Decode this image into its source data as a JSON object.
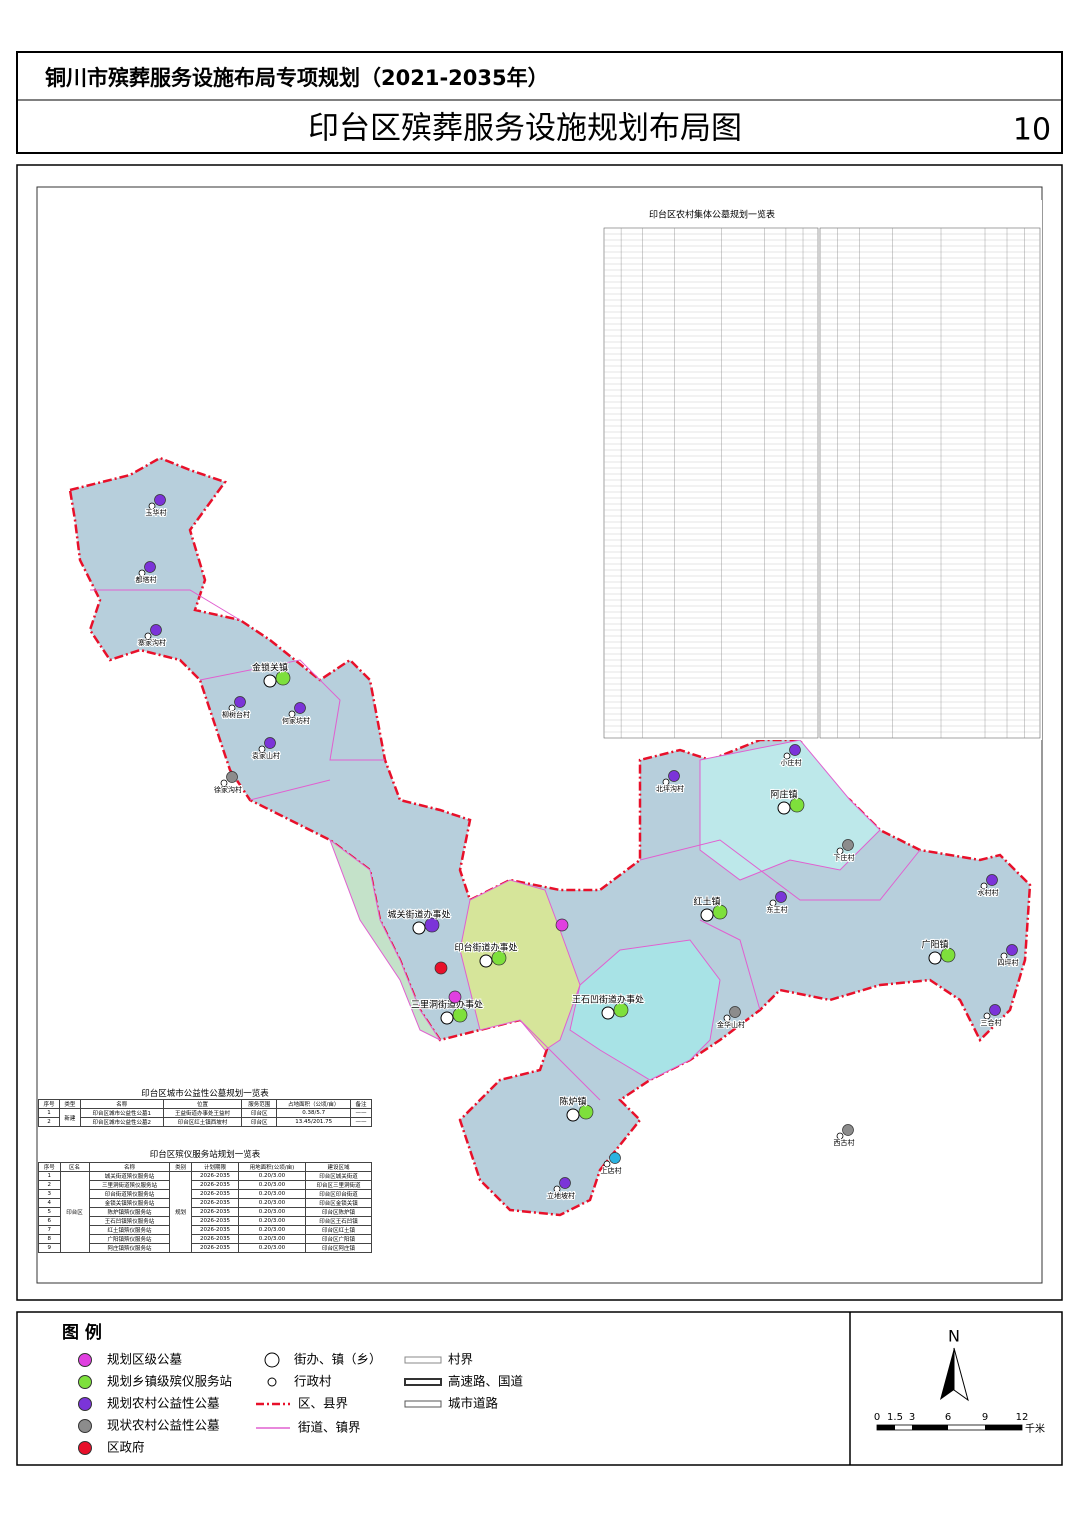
{
  "header": {
    "series_title": "铜川市殡葬服务设施布局专项规划（2021-2035年）",
    "title": "印台区殡葬服务设施规划布局图",
    "page": "10"
  },
  "rural_table": {
    "title": "印台区农村集体公墓规划一览表"
  },
  "places": [
    {
      "name": "玉华村",
      "color": "#7b34d8"
    },
    {
      "name": "都塔村",
      "color": "#7b34d8"
    },
    {
      "name": "寨家沟村",
      "color": "#7b34d8"
    },
    {
      "name": "金锁关镇",
      "color": "#7ee03c",
      "town": true
    },
    {
      "name": "柳树台村",
      "color": "#7b34d8"
    },
    {
      "name": "何家坊村",
      "color": "#7b34d8"
    },
    {
      "name": "袁家山村",
      "color": "#7b34d8"
    },
    {
      "name": "徐家沟村",
      "color": "#8c8c8c"
    },
    {
      "name": "北坪沟村",
      "color": "#7b34d8"
    },
    {
      "name": "小庄村",
      "color": "#7b34d8"
    },
    {
      "name": "阿庄镇",
      "color": "#7ee03c",
      "town": true
    },
    {
      "name": "下庄村",
      "color": "#8c8c8c"
    },
    {
      "name": "水村村",
      "color": "#7b34d8"
    },
    {
      "name": "广阳镇",
      "color": "#7ee03c",
      "town": true
    },
    {
      "name": "四坪村",
      "color": "#7b34d8"
    },
    {
      "name": "三合村",
      "color": "#7b34d8"
    },
    {
      "name": "红土镇",
      "color": "#7ee03c",
      "town": true
    },
    {
      "name": "东王村",
      "color": "#7b34d8"
    },
    {
      "name": "城关街道办事处",
      "color": "#7b34d8",
      "town": true
    },
    {
      "name": "印台街道办事处",
      "color": "#7ee03c",
      "town": true
    },
    {
      "name": "三里洞街道办事处",
      "color": "#7ee03c",
      "town": true
    },
    {
      "name": "王石凹街道办事处",
      "color": "#7ee03c",
      "town": true
    },
    {
      "name": "陈炉镇",
      "color": "#7ee03c",
      "town": true
    },
    {
      "name": "上店村",
      "color": "#2bb3e0"
    },
    {
      "name": "立地坡村",
      "color": "#7b34d8"
    },
    {
      "name": "金华山村",
      "color": "#8c8c8c"
    },
    {
      "name": "西古村",
      "color": "#8c8c8c"
    }
  ],
  "special_marks": [
    {
      "color": "#e8102a"
    },
    {
      "color": "#e040e0"
    },
    {
      "color": "#e040e0"
    }
  ],
  "city_table": {
    "title": "印台区城市公益性公墓规划一览表",
    "header": [
      "序号",
      "类型",
      "名称",
      "位置",
      "服务范围",
      "占地面积（公顷/亩）",
      "备注"
    ],
    "type": "新建",
    "rows": [
      [
        "1",
        "印台区城市公益性公墓1",
        "王益街道办事处王益村",
        "印台区",
        "0.38/5.7",
        "——"
      ],
      [
        "2",
        "印台区城市公益性公墓2",
        "印台区红土镇西坡村",
        "印台区",
        "13.45/201.75",
        "——"
      ]
    ]
  },
  "funeral_table": {
    "title": "印台区殡仪服务站规划一览表",
    "header": [
      "序号",
      "区名",
      "名称",
      "类别",
      "计划期限",
      "用地面积(公顷/亩)",
      "建设区域"
    ],
    "district": "印台区",
    "category": "规划",
    "rows": [
      [
        "1",
        "城关街道殡仪服务站",
        "2026-2035",
        "0.20/3.00",
        "印台区城关街道"
      ],
      [
        "2",
        "三里洞街道殡仪服务站",
        "2026-2035",
        "0.20/3.00",
        "印台区三里洞街道"
      ],
      [
        "3",
        "印台街道殡仪服务站",
        "2026-2035",
        "0.20/3.00",
        "印台区印台街道"
      ],
      [
        "4",
        "金锁关镇殡仪服务站",
        "2026-2035",
        "0.20/3.00",
        "印台区金锁关镇"
      ],
      [
        "5",
        "陈炉镇殡仪服务站",
        "2026-2035",
        "0.20/3.00",
        "印台区陈炉镇"
      ],
      [
        "6",
        "王石凹镇殡仪服务站",
        "2026-2035",
        "0.20/3.00",
        "印台区王石凹镇"
      ],
      [
        "7",
        "红土镇殡仪服务站",
        "2026-2035",
        "0.20/3.00",
        "印台区红土镇"
      ],
      [
        "8",
        "广阳镇殡仪服务站",
        "2026-2035",
        "0.20/3.00",
        "印台区广阳镇"
      ],
      [
        "9",
        "阿庄镇殡仪服务站",
        "2026-2035",
        "0.20/3.00",
        "印台区阿庄镇"
      ]
    ]
  },
  "legend": {
    "title": "图 例",
    "items": [
      {
        "label": "规划区级公墓",
        "color": "#e040e0",
        "marker": "dot"
      },
      {
        "label": "规划乡镇级殡仪服务站",
        "color": "#7ee03c",
        "marker": "dot"
      },
      {
        "label": "规划农村公益性公墓",
        "color": "#7b34d8",
        "marker": "dot"
      },
      {
        "label": "现状农村公益性公墓",
        "color": "#8c8c8c",
        "marker": "dot"
      },
      {
        "label": "区政府",
        "color": "#e8102a",
        "marker": "dot"
      },
      {
        "label": "街办、镇（乡）",
        "color": "#ffffff",
        "marker": "ring"
      },
      {
        "label": "行政村",
        "color": "#ffffff",
        "marker": "small-ring"
      },
      {
        "label": "区、县界",
        "color": "#e8102a",
        "marker": "dash-line"
      },
      {
        "label": "街道、镇界",
        "color": "#e060d0",
        "marker": "line"
      },
      {
        "label": "村界",
        "color": "#888888",
        "marker": "double-line"
      },
      {
        "label": "高速路、国道",
        "color": "#333333",
        "marker": "double-line"
      },
      {
        "label": "城市道路",
        "color": "#555555",
        "marker": "double-line"
      }
    ]
  },
  "north": "N",
  "scale": {
    "labels": [
      "0",
      "1.5",
      "3",
      "6",
      "9",
      "12"
    ],
    "unit": "千米"
  }
}
